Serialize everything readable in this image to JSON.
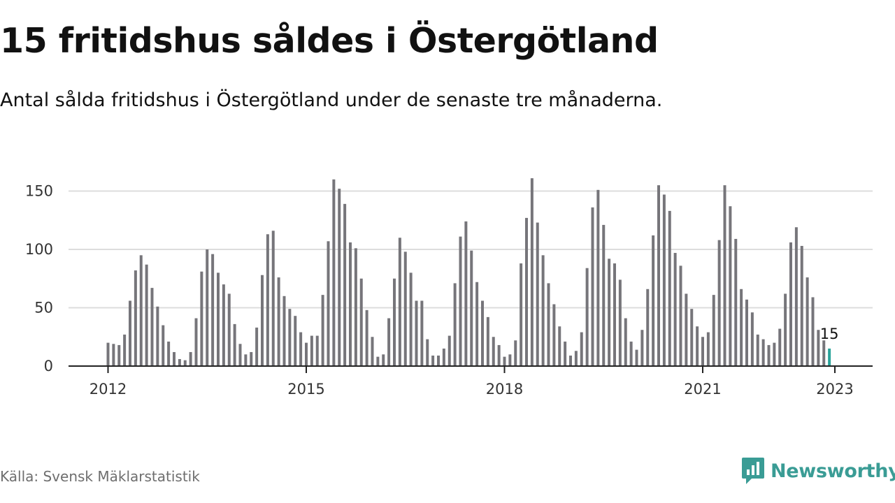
{
  "header": {
    "title": "15 fritidshus såldes i Östergötland",
    "subtitle": "Antal sålda fritidshus i Östergötland under de senaste tre månaderna."
  },
  "footer": {
    "source": "Källa: Svensk Mäklarstatistik",
    "brand": "Newsworthy"
  },
  "colors": {
    "bar": "#76757a",
    "highlight": "#2aa39a",
    "grid": "#dddddd",
    "axis": "#222222",
    "brand": "#3a9c95"
  },
  "icons": {
    "brand_logo": "newsworthy-logo-icon"
  },
  "chart_data": {
    "type": "bar",
    "start": "2012-01",
    "x_ticks": [
      "2012",
      "2015",
      "2018",
      "2021",
      "2023"
    ],
    "y_ticks": [
      0,
      50,
      100,
      150
    ],
    "ylim": [
      0,
      165
    ],
    "grid": true,
    "highlight_value_label": "15",
    "values": [
      20,
      19,
      18,
      27,
      56,
      82,
      95,
      87,
      67,
      51,
      35,
      21,
      12,
      6,
      5,
      12,
      41,
      81,
      100,
      96,
      80,
      70,
      62,
      36,
      19,
      10,
      12,
      33,
      78,
      113,
      116,
      76,
      60,
      49,
      43,
      29,
      20,
      26,
      26,
      61,
      107,
      160,
      152,
      139,
      106,
      101,
      75,
      48,
      25,
      8,
      10,
      41,
      75,
      110,
      98,
      80,
      56,
      56,
      23,
      9,
      9,
      15,
      26,
      71,
      111,
      124,
      99,
      72,
      56,
      42,
      25,
      18,
      8,
      10,
      22,
      88,
      127,
      161,
      123,
      95,
      71,
      53,
      34,
      21,
      9,
      13,
      29,
      84,
      136,
      151,
      121,
      92,
      88,
      74,
      41,
      21,
      14,
      31,
      66,
      112,
      155,
      147,
      133,
      97,
      86,
      62,
      49,
      34,
      25,
      29,
      61,
      108,
      155,
      137,
      109,
      66,
      57,
      46,
      27,
      23,
      18,
      20,
      32,
      62,
      106,
      119,
      103,
      76,
      59,
      31,
      22,
      15
    ]
  }
}
